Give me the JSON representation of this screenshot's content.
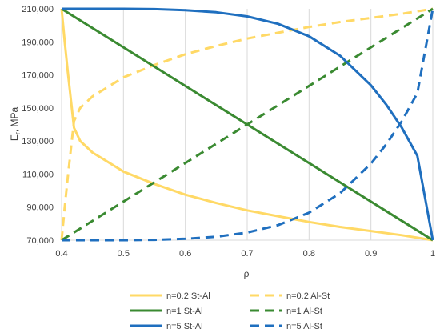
{
  "chart_data": {
    "type": "line",
    "title": "",
    "xlabel": "ρ",
    "ylabel": "Er, MPa",
    "ylabel_main": "E",
    "ylabel_sub": "r",
    "ylabel_rest": ", MPa",
    "xlim": [
      0.4,
      1.0
    ],
    "ylim": [
      70000,
      210000
    ],
    "x_ticks": [
      0.4,
      0.5,
      0.6,
      0.7,
      0.8,
      0.9,
      1.0
    ],
    "x_tick_labels": [
      "0.4",
      "0.5",
      "0.6",
      "0.7",
      "0.8",
      "0.9",
      "1"
    ],
    "y_ticks": [
      70000,
      90000,
      110000,
      130000,
      150000,
      170000,
      190000,
      210000
    ],
    "y_tick_labels": [
      "70,000",
      "90,000",
      "110,000",
      "130,000",
      "150,000",
      "170,000",
      "190,000",
      "210,000"
    ],
    "grid": "vertical",
    "legend_position": "bottom",
    "series": [
      {
        "name": "n=0.2 St-Al",
        "color": "#FFD966",
        "dash": "solid",
        "x": [
          0.4,
          0.405,
          0.41,
          0.415,
          0.42,
          0.43,
          0.45,
          0.5,
          0.55,
          0.6,
          0.65,
          0.7,
          0.75,
          0.8,
          0.85,
          0.9,
          0.95,
          1.0
        ],
        "y": [
          210000,
          190000,
          172000,
          155000,
          138000,
          130000,
          123000,
          111500,
          104000,
          97500,
          92500,
          88000,
          84500,
          81000,
          78000,
          75500,
          73000,
          70000
        ]
      },
      {
        "name": "n=0.2 Al-St",
        "color": "#FFD966",
        "dash": "dash",
        "x": [
          0.4,
          0.405,
          0.41,
          0.415,
          0.42,
          0.43,
          0.45,
          0.5,
          0.55,
          0.6,
          0.65,
          0.7,
          0.75,
          0.8,
          0.85,
          0.9,
          0.95,
          1.0
        ],
        "y": [
          70000,
          90000,
          108000,
          125000,
          142000,
          150000,
          157000,
          168500,
          176000,
          182500,
          187500,
          192000,
          195500,
          199000,
          202000,
          204500,
          207000,
          210000
        ]
      },
      {
        "name": "n=1 St-Al",
        "color": "#3A8A31",
        "dash": "solid",
        "x": [
          0.4,
          1.0
        ],
        "y": [
          210000,
          70000
        ]
      },
      {
        "name": "n=1 Al-St",
        "color": "#3A8A31",
        "dash": "dash",
        "x": [
          0.4,
          1.0
        ],
        "y": [
          70000,
          210000
        ]
      },
      {
        "name": "n=5 St-Al",
        "color": "#1F6FBF",
        "dash": "solid",
        "x": [
          0.4,
          0.45,
          0.5,
          0.55,
          0.6,
          0.65,
          0.7,
          0.75,
          0.8,
          0.85,
          0.9,
          0.925,
          0.95,
          0.975,
          1.0
        ],
        "y": [
          210000,
          210000,
          210000,
          209800,
          209200,
          207900,
          205400,
          200900,
          193400,
          181600,
          163700,
          151900,
          138000,
          121000,
          70000
        ]
      },
      {
        "name": "n=5 Al-St",
        "color": "#1F6FBF",
        "dash": "dash",
        "x": [
          0.4,
          0.45,
          0.5,
          0.55,
          0.6,
          0.65,
          0.7,
          0.75,
          0.8,
          0.85,
          0.9,
          0.925,
          0.95,
          0.975,
          1.0
        ],
        "y": [
          70000,
          70000,
          70000,
          70200,
          70800,
          72100,
          74600,
          79100,
          86600,
          98400,
          116300,
          128100,
          142000,
          159000,
          210000
        ]
      }
    ]
  }
}
